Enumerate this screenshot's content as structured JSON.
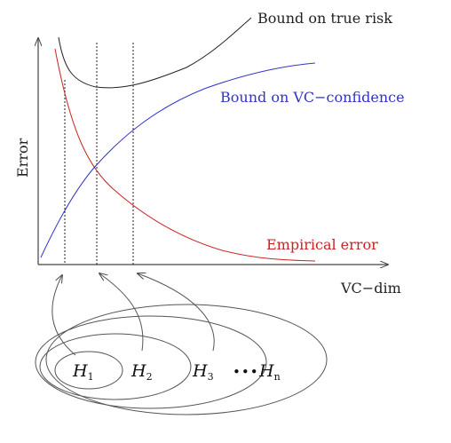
{
  "axes": {
    "y_label": "Error",
    "x_label": "VC−dim"
  },
  "curves": {
    "true_risk_label": "Bound on true risk",
    "vc_confidence_label": "Bound on VC−confidence",
    "empirical_label": "Empirical error"
  },
  "colors": {
    "true_risk": "#222222",
    "vc_confidence": "#3333cc",
    "empirical": "#cc2222",
    "axes": "#444444",
    "ellipses": "#555555"
  },
  "hypotheses": {
    "h1": {
      "letter": "H",
      "sub": "1"
    },
    "h2": {
      "letter": "H",
      "sub": "2"
    },
    "h3": {
      "letter": "H",
      "sub": "3"
    },
    "dots": "•••",
    "hn": {
      "letter": "H",
      "sub": "n"
    }
  }
}
